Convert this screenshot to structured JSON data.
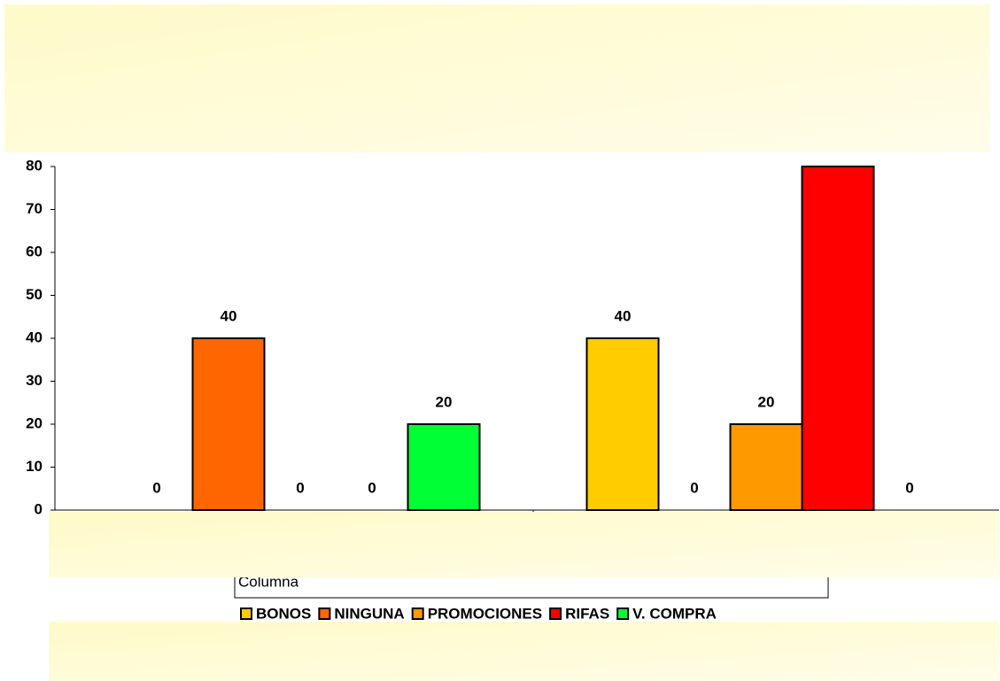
{
  "chart_data": {
    "type": "bar",
    "categories": [
      null,
      null
    ],
    "series": [
      {
        "name": "BONOS",
        "color": "#ffcc00",
        "values": [
          0,
          40
        ]
      },
      {
        "name": "NINGUNA",
        "color": "#ff6600",
        "values": [
          40,
          0
        ]
      },
      {
        "name": "PROMOCIONES",
        "color": "#ff9900",
        "values": [
          0,
          20
        ]
      },
      {
        "name": "RIFAS",
        "color": "#ff0000",
        "values": [
          0,
          80
        ]
      },
      {
        "name": "V. COMPRA",
        "color": "#00ff33",
        "values": [
          20,
          0
        ]
      }
    ],
    "x_label": "Columna",
    "ylim": [
      0,
      80
    ],
    "yticks": [
      0,
      10,
      20,
      30,
      40,
      50,
      60,
      70,
      80
    ],
    "grid": false,
    "legend": "bottom"
  }
}
